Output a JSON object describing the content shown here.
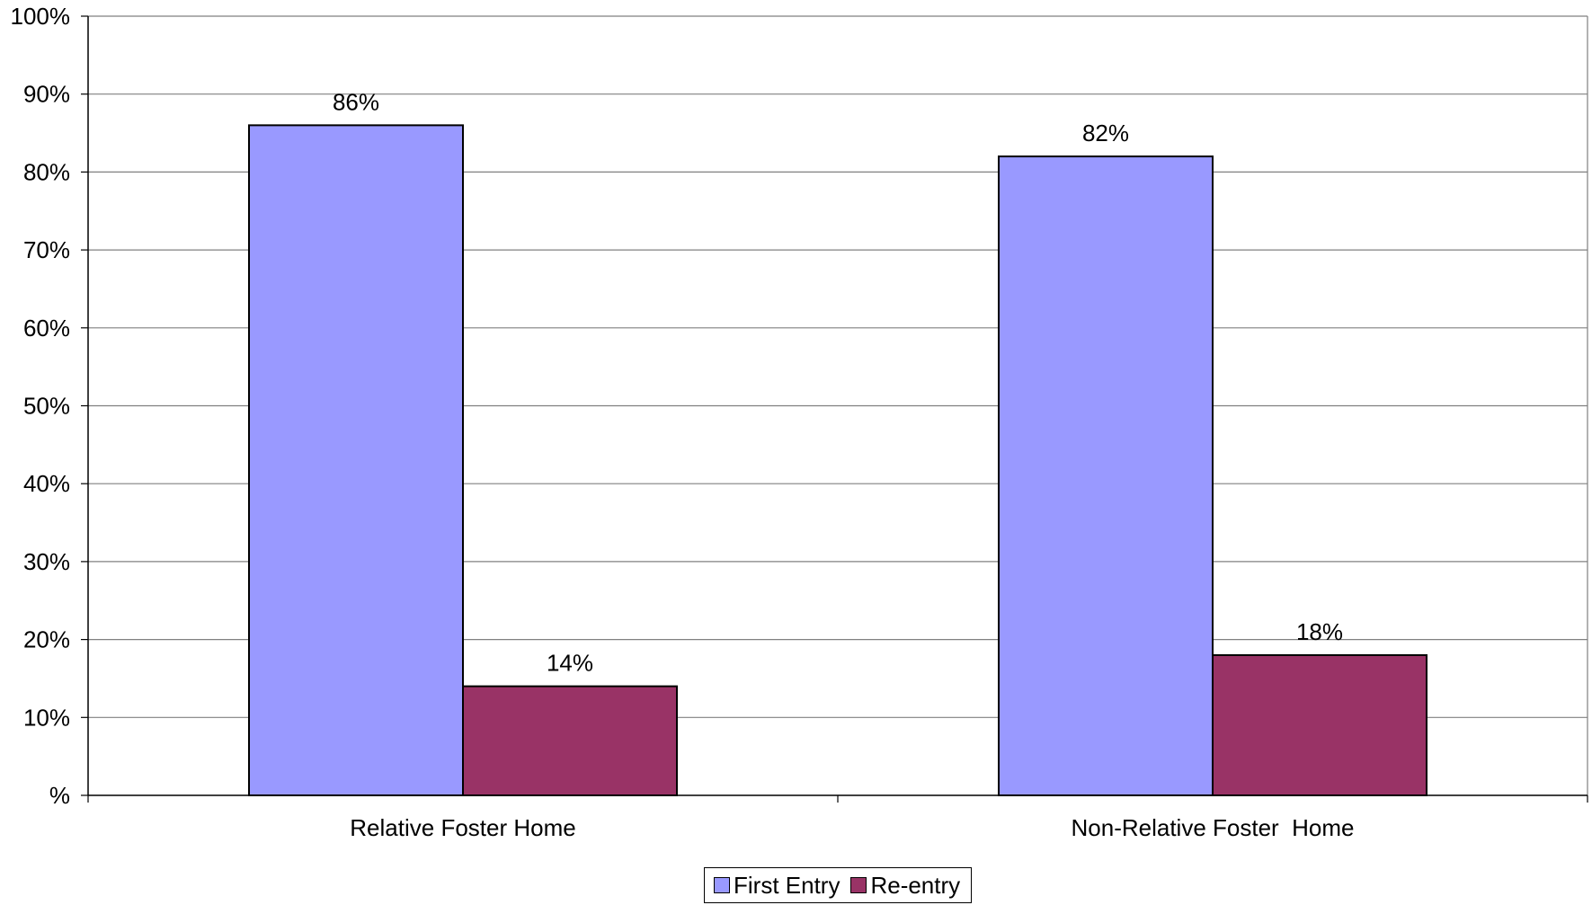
{
  "chart_data": {
    "type": "bar",
    "title": "",
    "xlabel": "",
    "ylabel": "",
    "categories": [
      "Relative Foster Home",
      "Non-Relative Foster  Home"
    ],
    "series": [
      {
        "name": "First Entry",
        "values": [
          86,
          82
        ],
        "labels": [
          "86%",
          "82%"
        ],
        "color": "#9999FF"
      },
      {
        "name": "Re-entry",
        "values": [
          14,
          18
        ],
        "labels": [
          "14%",
          "18%"
        ],
        "color": "#993366"
      }
    ],
    "ylim": [
      0,
      100
    ],
    "yticks": [
      {
        "value": 0,
        "label": "%"
      },
      {
        "value": 10,
        "label": "10%"
      },
      {
        "value": 20,
        "label": "20%"
      },
      {
        "value": 30,
        "label": "30%"
      },
      {
        "value": 40,
        "label": "40%"
      },
      {
        "value": 50,
        "label": "50%"
      },
      {
        "value": 60,
        "label": "60%"
      },
      {
        "value": 70,
        "label": "70%"
      },
      {
        "value": 80,
        "label": "80%"
      },
      {
        "value": 90,
        "label": "90%"
      },
      {
        "value": 100,
        "label": "100%"
      }
    ],
    "grid": true,
    "legend": "bottom"
  }
}
